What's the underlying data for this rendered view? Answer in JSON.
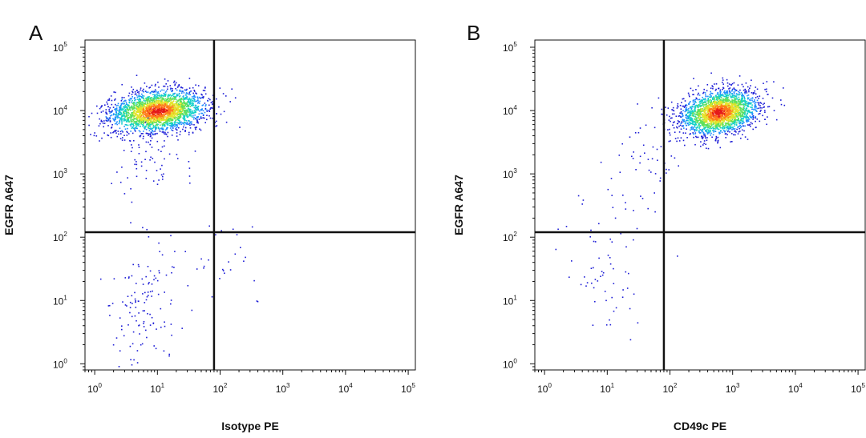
{
  "chart_data": [
    {
      "type": "scatter",
      "panel_label": "A",
      "xlabel": "Isotype PE",
      "ylabel": "EGFR A647",
      "x_scale": "log",
      "y_scale": "log",
      "xlim": [
        0.7,
        130000
      ],
      "ylim": [
        0.8,
        130000
      ],
      "x_ticks": [
        "10^0",
        "10^1",
        "10^2",
        "10^3",
        "10^4",
        "10^5"
      ],
      "y_ticks": [
        "10^0",
        "10^1",
        "10^2",
        "10^3",
        "10^4",
        "10^5"
      ],
      "gate_x": 80,
      "gate_y": 120,
      "colormap": [
        "#1c1cd6",
        "#1f8cff",
        "#13d1c8",
        "#5ee05a",
        "#e4e42a",
        "#ff7a1a",
        "#e41a1a"
      ],
      "populations": [
        {
          "center": [
            10,
            10000
          ],
          "spread_log": [
            0.38,
            0.16
          ],
          "count": 2600,
          "density": "high"
        },
        {
          "center": [
            8,
            1500
          ],
          "spread_log": [
            0.35,
            0.25
          ],
          "count": 60,
          "density": "low"
        },
        {
          "center": [
            6,
            8
          ],
          "spread_log": [
            0.3,
            0.55
          ],
          "count": 130,
          "density": "sparse"
        },
        {
          "center": [
            130,
            40
          ],
          "spread_log": [
            0.35,
            0.35
          ],
          "count": 25,
          "density": "sparse"
        }
      ],
      "grid": false
    },
    {
      "type": "scatter",
      "panel_label": "B",
      "xlabel": "CD49c PE",
      "ylabel": "EGFR A647",
      "x_scale": "log",
      "y_scale": "log",
      "xlim": [
        0.7,
        130000
      ],
      "ylim": [
        0.8,
        130000
      ],
      "x_ticks": [
        "10^0",
        "10^1",
        "10^2",
        "10^3",
        "10^4",
        "10^5"
      ],
      "y_ticks": [
        "10^0",
        "10^1",
        "10^2",
        "10^3",
        "10^4",
        "10^5"
      ],
      "gate_x": 80,
      "gate_y": 120,
      "colormap": [
        "#1c1cd6",
        "#1f8cff",
        "#13d1c8",
        "#5ee05a",
        "#e4e42a",
        "#ff7a1a",
        "#e41a1a"
      ],
      "populations": [
        {
          "center": [
            600,
            9500
          ],
          "spread_log": [
            0.3,
            0.17
          ],
          "count": 2400,
          "density": "high"
        },
        {
          "center": [
            60,
            2500
          ],
          "spread_log": [
            0.25,
            0.25
          ],
          "count": 40,
          "density": "low"
        },
        {
          "center": [
            10,
            60
          ],
          "spread_log": [
            0.4,
            0.7
          ],
          "count": 80,
          "density": "sparse"
        }
      ],
      "grid": false
    }
  ]
}
